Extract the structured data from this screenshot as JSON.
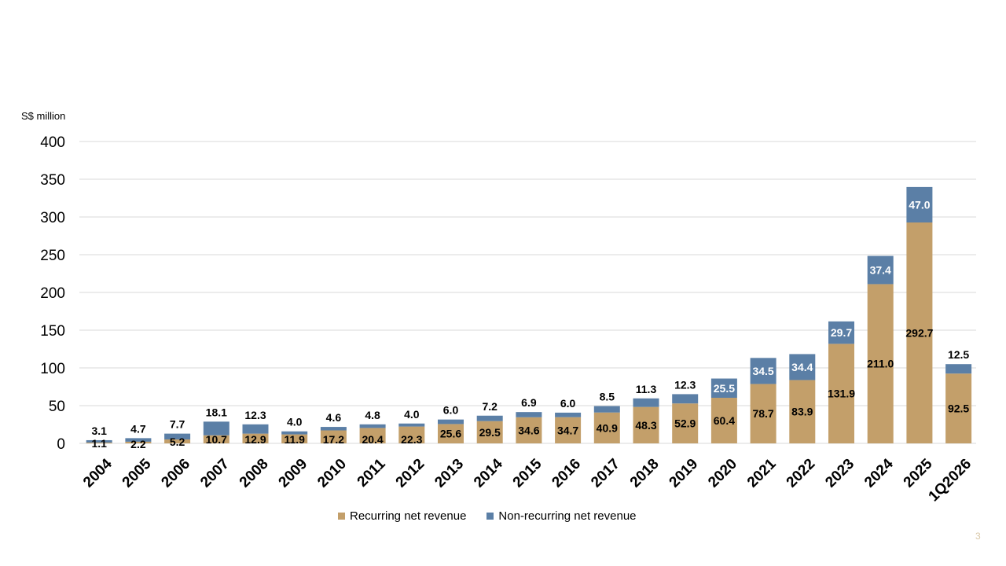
{
  "colors": {
    "recurring": "#c39f6a",
    "non_recurring": "#5b7fa6",
    "grid": "#d9d9d9",
    "page_number": "#d9c8a8"
  },
  "page": {
    "number": "3"
  },
  "chart_data": {
    "type": "bar",
    "stacked": true,
    "unit_label": "S$ million",
    "categories": [
      "2004",
      "2005",
      "2006",
      "2007",
      "2008",
      "2009",
      "2010",
      "2011",
      "2012",
      "2013",
      "2014",
      "2015",
      "2016",
      "2017",
      "2018",
      "2019",
      "2020",
      "2021",
      "2022",
      "2023",
      "2024",
      "2025",
      "1Q2026"
    ],
    "series": [
      {
        "name": "Recurring net revenue",
        "values": [
          1.1,
          2.2,
          5.2,
          10.7,
          12.9,
          11.9,
          17.2,
          20.4,
          22.3,
          25.6,
          29.5,
          34.6,
          34.7,
          40.9,
          48.3,
          52.9,
          60.4,
          78.7,
          83.9,
          131.9,
          211.0,
          292.7,
          92.5
        ],
        "labels": [
          "1.1",
          "2.2",
          "5.2",
          "10.7",
          "12.9",
          "11.9",
          "17.2",
          "20.4",
          "22.3",
          "25.6",
          "29.5",
          "34.6",
          "34.7",
          "40.9",
          "48.3",
          "52.9",
          "60.4",
          "78.7",
          "83.9",
          "131.9",
          "211.0",
          "292.7",
          "92.5"
        ]
      },
      {
        "name": "Non-recurring net revenue",
        "values": [
          3.1,
          4.7,
          7.7,
          18.1,
          12.3,
          4.0,
          4.6,
          4.8,
          4.0,
          6.0,
          7.2,
          6.9,
          6.0,
          8.5,
          11.3,
          12.3,
          25.5,
          34.5,
          34.4,
          29.7,
          37.4,
          47.0,
          12.5
        ],
        "labels": [
          "3.1",
          "4.7",
          "7.7",
          "18.1",
          "12.3",
          "4.0",
          "4.6",
          "4.8",
          "4.0",
          "6.0",
          "7.2",
          "6.9",
          "6.0",
          "8.5",
          "11.3",
          "12.3",
          "25.5",
          "34.5",
          "34.4",
          "29.7",
          "37.4",
          "47.0",
          "12.5"
        ]
      }
    ],
    "y_ticks": [
      "0",
      "50",
      "100",
      "150",
      "200",
      "250",
      "300",
      "350",
      "400"
    ],
    "ylim": [
      0,
      400
    ],
    "grid": true,
    "legend_position": "bottom"
  }
}
